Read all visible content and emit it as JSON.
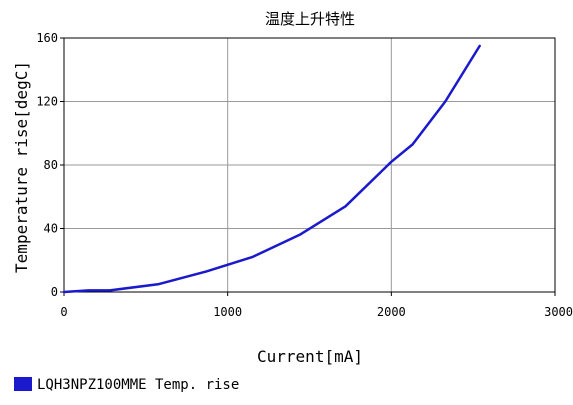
{
  "chart_data": {
    "type": "line",
    "title": "温度上升特性",
    "xlabel": "Current[mA]",
    "ylabel": "Temperature rise[degC]",
    "xlim": [
      0,
      3000
    ],
    "ylim": [
      0,
      160
    ],
    "x_ticks": [
      0,
      1000,
      2000,
      3000
    ],
    "y_ticks": [
      0,
      40,
      80,
      120,
      160
    ],
    "x_tick_labels": [
      "0",
      "1000",
      "2000",
      "3000"
    ],
    "y_tick_labels": [
      "0",
      "40",
      "80",
      "120",
      "160"
    ],
    "grid": true,
    "legend_position": "bottom-left",
    "series": [
      {
        "name": "LQH3NPZ100MME Temp. rise",
        "color": "#1a1acc",
        "points": [
          [
            0,
            0
          ],
          [
            150,
            1
          ],
          [
            280,
            1
          ],
          [
            580,
            5
          ],
          [
            870,
            13
          ],
          [
            1150,
            22
          ],
          [
            1440,
            36
          ],
          [
            1720,
            54
          ],
          [
            2000,
            82
          ],
          [
            2130,
            93
          ],
          [
            2330,
            120
          ],
          [
            2540,
            155
          ]
        ]
      }
    ]
  }
}
